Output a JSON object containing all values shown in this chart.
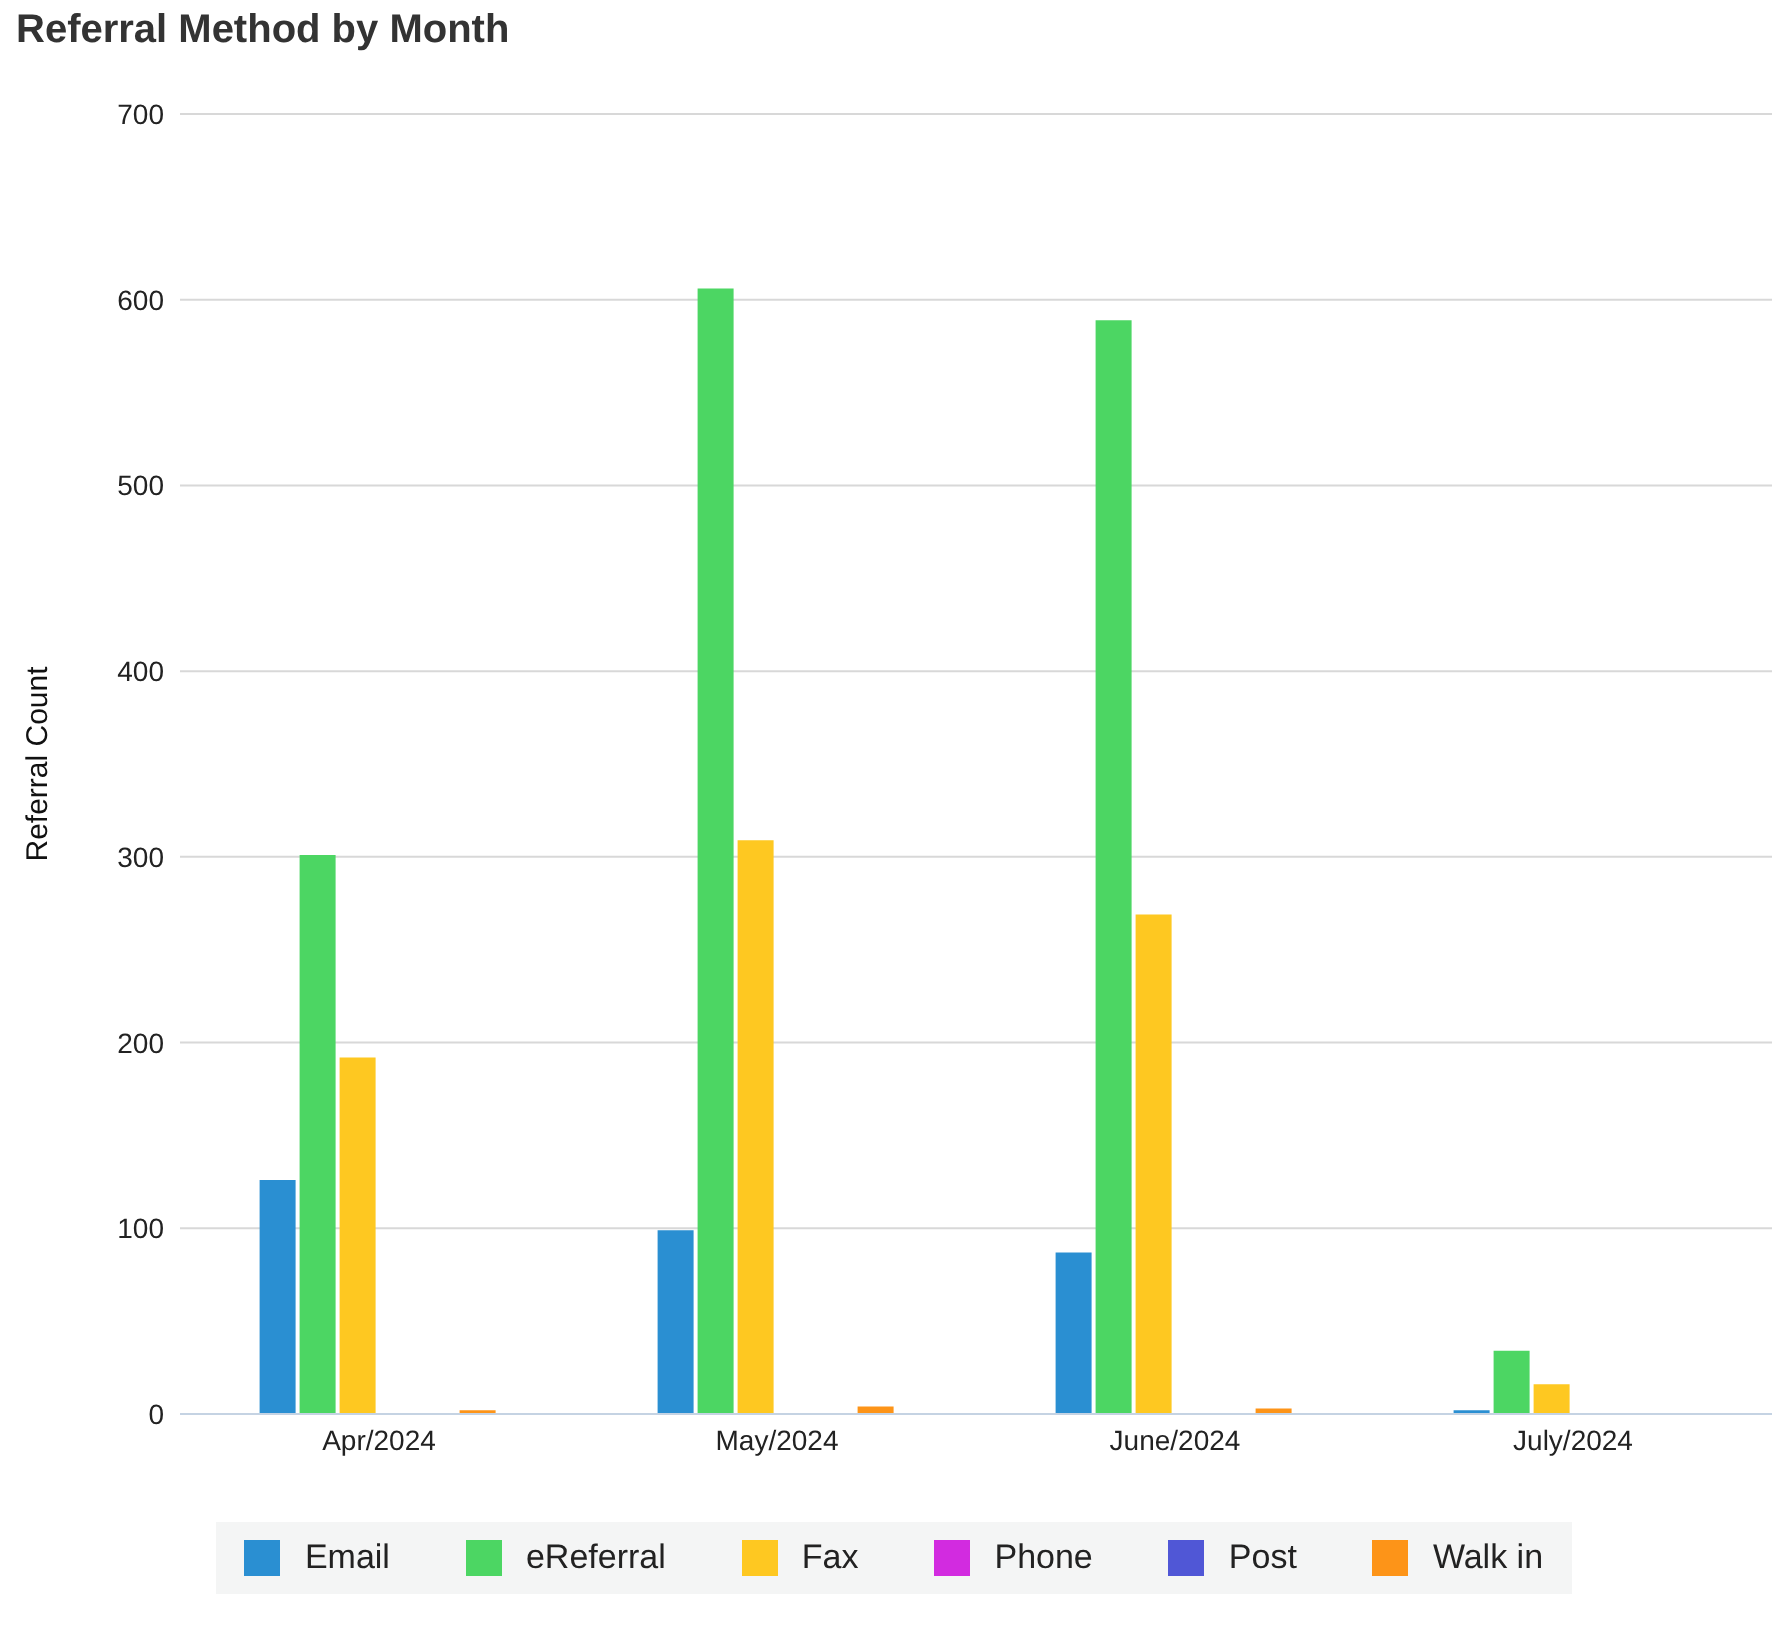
{
  "chart_data": {
    "type": "bar",
    "title": "Referral Method by Month",
    "ylabel": "Referral Count",
    "categories": [
      "Apr/2024",
      "May/2024",
      "June/2024",
      "July/2024"
    ],
    "series": [
      {
        "name": "Email",
        "color": "#2a8fd2",
        "values": [
          126,
          99,
          87,
          2
        ]
      },
      {
        "name": "eReferral",
        "color": "#4cd663",
        "values": [
          301,
          606,
          589,
          34
        ]
      },
      {
        "name": "Fax",
        "color": "#fec821",
        "values": [
          192,
          309,
          269,
          16
        ]
      },
      {
        "name": "Phone",
        "color": "#d22be0",
        "values": [
          0,
          0,
          0,
          0
        ]
      },
      {
        "name": "Post",
        "color": "#5057d6",
        "values": [
          0,
          0,
          0,
          0
        ]
      },
      {
        "name": "Walk in",
        "color": "#fd9418",
        "values": [
          2,
          4,
          3,
          0
        ]
      }
    ],
    "ylim": [
      0,
      700
    ],
    "yticks": [
      0,
      100,
      200,
      300,
      400,
      500,
      600,
      700
    ],
    "grid": "y",
    "legend": "bottom"
  }
}
